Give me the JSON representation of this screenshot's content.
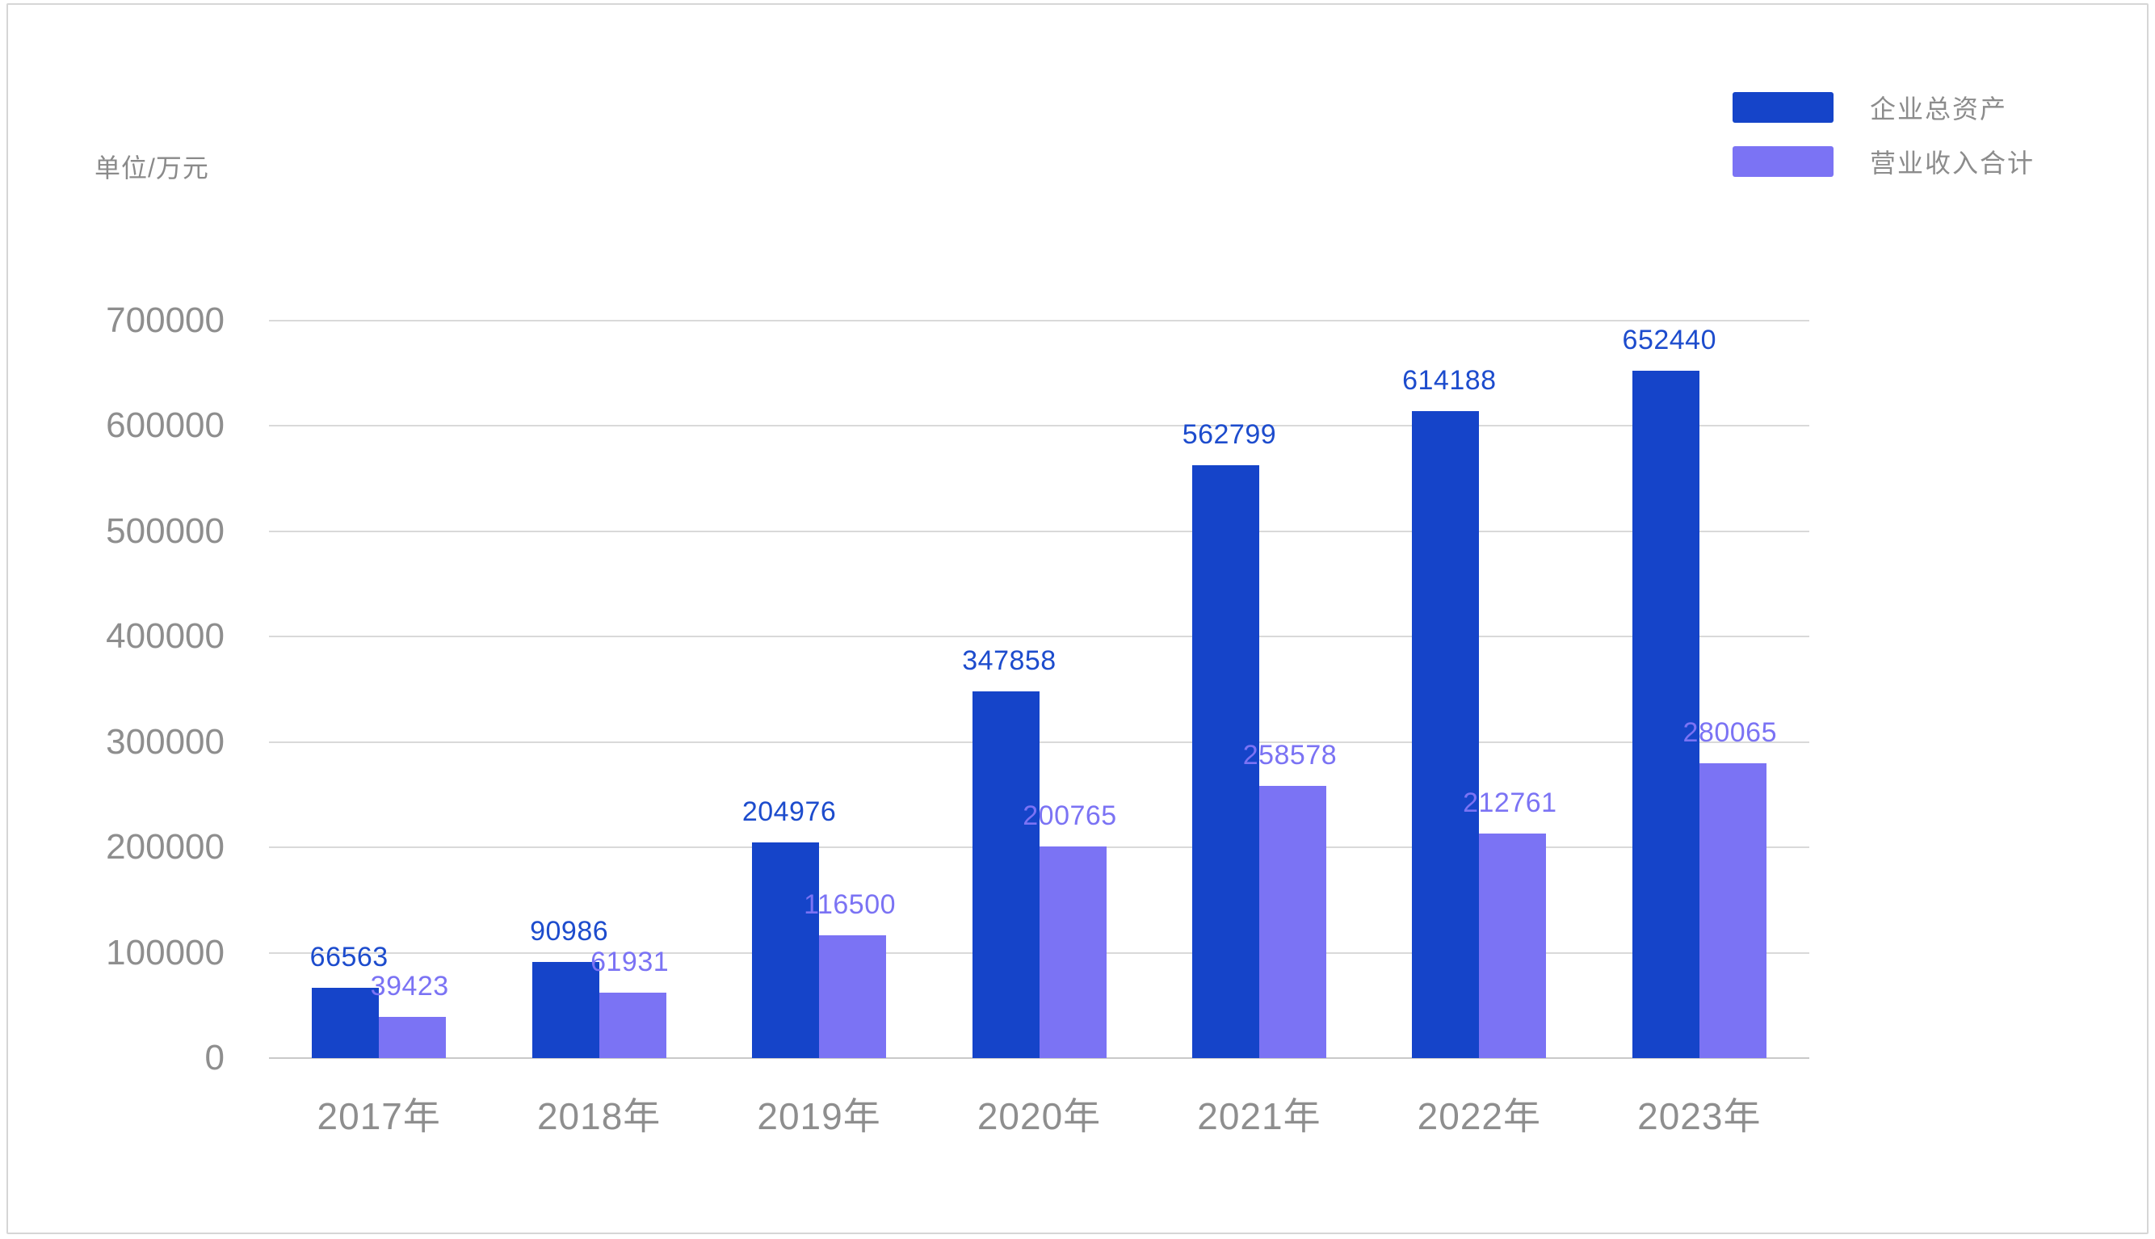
{
  "chart_data": {
    "type": "bar",
    "unit_label": "单位/万元",
    "categories": [
      "2017年",
      "2018年",
      "2019年",
      "2020年",
      "2021年",
      "2022年",
      "2023年"
    ],
    "series": [
      {
        "name": "企业总资产",
        "color": "#1544c9",
        "label_color": "#1d4ccd",
        "values": [
          66563,
          90986,
          204976,
          347858,
          562799,
          614188,
          652440
        ]
      },
      {
        "name": "营业收入合计",
        "color": "#7b73f4",
        "label_color": "#7b73f4",
        "values": [
          39423,
          61931,
          116500,
          200765,
          258578,
          212761,
          280065
        ]
      }
    ],
    "ylim": [
      0,
      700000
    ],
    "ytick_interval": 100000,
    "yticks": [
      "0",
      "100000",
      "200000",
      "300000",
      "400000",
      "500000",
      "600000",
      "700000"
    ],
    "grid": "horizontal-only",
    "legend_position": "top-right"
  },
  "colors": {
    "grid": "#d9d9d9",
    "axis_baseline": "#c9c9c9",
    "axis_text": "#8e8e8e",
    "unit_text": "#8a8a8a",
    "legend_text": "#8c8c8c",
    "background": "#ffffff",
    "frame_border": "#d6d6d6"
  }
}
